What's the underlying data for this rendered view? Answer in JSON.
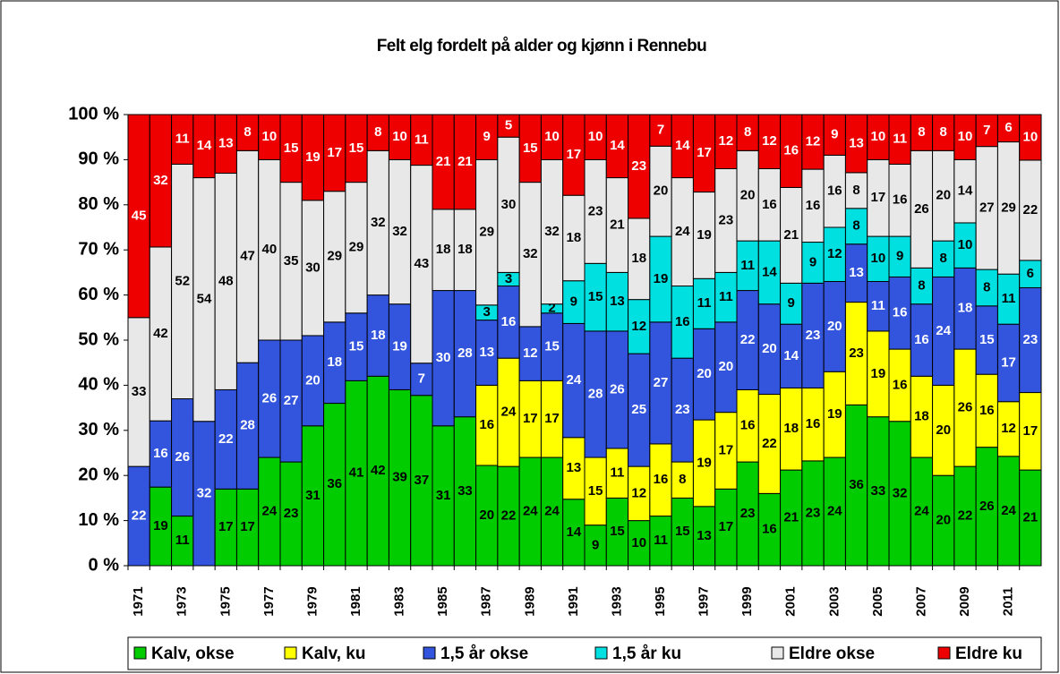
{
  "chart_data": {
    "type": "bar",
    "stacked": "percent",
    "title": "Felt elg fordelt på alder og kjønn i Rennebu",
    "categories": [
      "1971",
      null,
      "1973",
      null,
      "1975",
      null,
      "1977",
      null,
      "1979",
      null,
      "1981",
      null,
      "1983",
      null,
      "1985",
      null,
      "1987",
      null,
      "1989",
      null,
      "1991",
      null,
      "1993",
      null,
      "1995",
      null,
      "1997",
      null,
      "1999",
      null,
      "2001",
      null,
      "2003",
      null,
      "2005",
      null,
      "2007",
      null,
      "2009",
      null,
      "2011",
      null
    ],
    "series": [
      {
        "name": "Kalv, okse",
        "color": "#00cc00",
        "label_color": "#000000",
        "values": [
          0,
          19,
          11,
          0,
          17,
          17,
          24,
          23,
          31,
          36,
          41,
          42,
          39,
          37,
          31,
          33,
          20,
          22,
          24,
          24,
          14,
          9,
          15,
          10,
          11,
          15,
          13,
          17,
          23,
          16,
          21,
          23,
          24,
          36,
          33,
          32,
          24,
          20,
          22,
          26,
          24,
          21
        ]
      },
      {
        "name": "Kalv, ku",
        "color": "#ffff00",
        "label_color": "#000000",
        "values": [
          0,
          0,
          0,
          0,
          0,
          0,
          0,
          0,
          0,
          0,
          0,
          0,
          0,
          0,
          0,
          0,
          16,
          24,
          17,
          17,
          13,
          15,
          11,
          12,
          16,
          8,
          19,
          17,
          16,
          22,
          18,
          16,
          19,
          23,
          19,
          16,
          18,
          20,
          26,
          16,
          12,
          17
        ]
      },
      {
        "name": "1,5 år okse",
        "color": "#3355dd",
        "label_color": "#ffffff",
        "values": [
          22,
          16,
          26,
          32,
          22,
          28,
          26,
          27,
          20,
          18,
          15,
          18,
          19,
          7,
          30,
          28,
          13,
          16,
          12,
          15,
          24,
          28,
          26,
          25,
          27,
          23,
          20,
          20,
          22,
          20,
          14,
          23,
          20,
          13,
          11,
          16,
          16,
          24,
          18,
          15,
          17,
          23
        ]
      },
      {
        "name": "1,5 år ku",
        "color": "#00e0e0",
        "label_color": "#000000",
        "values": [
          0,
          0,
          0,
          0,
          0,
          0,
          0,
          0,
          0,
          0,
          0,
          0,
          0,
          0,
          0,
          0,
          3,
          3,
          0,
          2,
          9,
          15,
          13,
          12,
          19,
          16,
          11,
          11,
          11,
          14,
          9,
          9,
          12,
          8,
          10,
          9,
          8,
          8,
          10,
          8,
          11,
          6
        ]
      },
      {
        "name": "Eldre okse",
        "color": "#e8e8e8",
        "label_color": "#000000",
        "values": [
          33,
          42,
          52,
          54,
          48,
          47,
          40,
          35,
          30,
          29,
          29,
          32,
          32,
          43,
          18,
          18,
          29,
          30,
          32,
          32,
          18,
          23,
          21,
          18,
          20,
          24,
          19,
          23,
          20,
          16,
          21,
          16,
          16,
          8,
          17,
          16,
          26,
          20,
          14,
          27,
          29,
          22
        ]
      },
      {
        "name": "Eldre ku",
        "color": "#ee0000",
        "label_color": "#ffffff",
        "values": [
          45,
          32,
          11,
          14,
          13,
          8,
          10,
          15,
          19,
          17,
          15,
          8,
          10,
          11,
          21,
          21,
          9,
          5,
          15,
          10,
          17,
          10,
          14,
          23,
          7,
          14,
          17,
          12,
          8,
          12,
          16,
          12,
          9,
          13,
          10,
          11,
          8,
          8,
          10,
          7,
          6,
          10
        ]
      }
    ],
    "ylim": [
      0,
      100
    ],
    "yticks": [
      {
        "value": 0,
        "label": "0 %"
      },
      {
        "value": 10,
        "label": "10 %"
      },
      {
        "value": 20,
        "label": "20 %"
      },
      {
        "value": 30,
        "label": "30 %"
      },
      {
        "value": 40,
        "label": "40 %"
      },
      {
        "value": 50,
        "label": "50 %"
      },
      {
        "value": 60,
        "label": "60 %"
      },
      {
        "value": 70,
        "label": "70 %"
      },
      {
        "value": 80,
        "label": "80 %"
      },
      {
        "value": 90,
        "label": "90 %"
      },
      {
        "value": 100,
        "label": "100 %"
      }
    ],
    "grid": true,
    "legend": "bottom"
  }
}
